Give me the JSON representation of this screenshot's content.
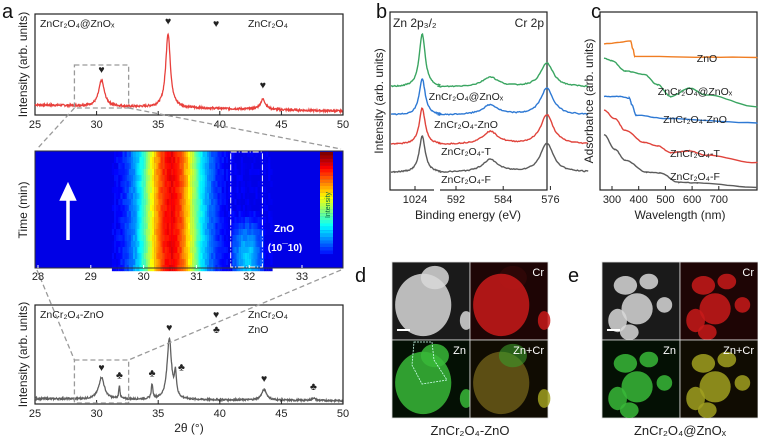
{
  "panel_labels": {
    "a": "a",
    "b": "b",
    "c": "c",
    "d": "d",
    "e": "e"
  },
  "chart_data": [
    {
      "id": "a_top",
      "type": "line",
      "title": "ZnCr₂O₄@ZnOₓ",
      "xlabel": "",
      "ylabel": "Intensity (arb. units)",
      "xlim": [
        25,
        50
      ],
      "xticks": [
        25,
        30,
        35,
        40,
        45,
        50
      ],
      "legend": [
        {
          "symbol": "♥",
          "label": "ZnCr₂O₄"
        }
      ],
      "color": "#e8403c",
      "baseline": [
        0.13,
        0.05
      ],
      "peaks": [
        {
          "x": 30.4,
          "h": 0.33,
          "w": 0.55,
          "marker": "♥"
        },
        {
          "x": 35.8,
          "h": 0.95,
          "w": 0.45,
          "marker": "♥"
        },
        {
          "x": 43.5,
          "h": 0.13,
          "w": 0.5,
          "marker": "♥"
        }
      ]
    },
    {
      "id": "a_mid",
      "type": "heatmap",
      "ylabel": "Time (min)",
      "xlim": [
        28,
        33.8
      ],
      "xticks": [
        28,
        29,
        30,
        31,
        32,
        33
      ],
      "colorbar_label": "Intensity",
      "annotation": "ZnO",
      "annotation2": "(10¯10)",
      "main_peak": {
        "x": 30.5,
        "w": 0.55
      },
      "zno_region": [
        31.65,
        32.25
      ]
    },
    {
      "id": "a_bottom",
      "type": "line",
      "title": "ZnCr₂O₄-ZnO",
      "xlabel": "2θ (°)",
      "ylabel": "Intensity (arb. units)",
      "xlim": [
        25,
        50
      ],
      "xticks": [
        25,
        30,
        35,
        40,
        45,
        50
      ],
      "legend": [
        {
          "symbol": "♥",
          "label": "ZnCr₂O₄"
        },
        {
          "symbol": "♣",
          "label": "ZnO"
        }
      ],
      "color": "#606060",
      "baseline": [
        0.05,
        0.02
      ],
      "peaks": [
        {
          "x": 30.4,
          "h": 0.33,
          "w": 0.55,
          "marker": "♥"
        },
        {
          "x": 31.85,
          "h": 0.2,
          "w": 0.12,
          "marker": "♣"
        },
        {
          "x": 34.5,
          "h": 0.22,
          "w": 0.15,
          "marker": "♣"
        },
        {
          "x": 35.9,
          "h": 0.92,
          "w": 0.42,
          "marker": "♥"
        },
        {
          "x": 36.4,
          "h": 0.35,
          "w": 0.2,
          "marker": "♣"
        },
        {
          "x": 43.6,
          "h": 0.16,
          "w": 0.5,
          "marker": "♥"
        },
        {
          "x": 47.6,
          "h": 0.04,
          "w": 0.3,
          "marker": "♣"
        }
      ]
    },
    {
      "id": "b",
      "type": "line",
      "xlabel": "Binding energy (eV)",
      "ylabel": "Intensity (arb. units)",
      "header_left": "Zn 2p₃/₂",
      "header_right": "Cr 2p",
      "xticks": [
        1024,
        592,
        584,
        576
      ],
      "series": [
        {
          "name": "ZnCr₂O₄@ZnOₓ",
          "color": "#3aa561",
          "offset": 3.5,
          "zn": 1.9,
          "cr1": 0.35,
          "cr2": 0.85
        },
        {
          "name": "ZnCr₂O₄-ZnO",
          "color": "#2e79d4",
          "offset": 2.5,
          "zn": 1.3,
          "cr1": 0.35,
          "cr2": 0.95
        },
        {
          "name": "ZnCr₂O₄-T",
          "color": "#e0443c",
          "offset": 1.45,
          "zn": 1.3,
          "cr1": 0.45,
          "cr2": 1.05
        },
        {
          "name": "ZnCr₂O₄-F",
          "color": "#5c5c5c",
          "offset": 0.45,
          "zn": 1.3,
          "cr1": 0.45,
          "cr2": 1.05
        }
      ]
    },
    {
      "id": "c",
      "type": "line",
      "xlabel": "Wavelength (nm)",
      "ylabel": "Adsorbance (arb. units)",
      "xlim": [
        255,
        843
      ],
      "xticks": [
        300,
        400,
        500,
        600,
        700
      ],
      "series": [
        {
          "name": "ZnO",
          "color": "#f07d22",
          "x": [
            270,
            370,
            378,
            386,
            843
          ],
          "y": [
            8.6,
            8.75,
            8.3,
            7.85,
            7.8
          ]
        },
        {
          "name": "ZnCr₂O₄@ZnOₓ",
          "color": "#3aa561",
          "x": [
            270,
            300,
            350,
            420,
            470,
            520,
            590,
            650,
            843
          ],
          "y": [
            7.75,
            7.6,
            7.0,
            6.8,
            6.2,
            5.5,
            6.0,
            5.6,
            4.9
          ]
        },
        {
          "name": "ZnCr₂O₄-ZnO",
          "color": "#2e79d4",
          "x": [
            270,
            330,
            365,
            375,
            390,
            500,
            843
          ],
          "y": [
            5.5,
            5.5,
            5.4,
            5.0,
            4.4,
            4.2,
            3.95
          ]
        },
        {
          "name": "ZnCr₂O₄-T",
          "color": "#e0443c",
          "x": [
            270,
            310,
            350,
            420,
            470,
            520,
            590,
            650,
            843
          ],
          "y": [
            4.7,
            4.2,
            3.5,
            2.8,
            2.6,
            2.2,
            2.3,
            2.05,
            1.6
          ]
        },
        {
          "name": "ZnCr₂O₄-F",
          "color": "#5c5c5c",
          "x": [
            270,
            310,
            350,
            430,
            480,
            550,
            620,
            843
          ],
          "y": [
            3.25,
            2.4,
            1.75,
            1.05,
            1.0,
            0.45,
            0.42,
            0.15
          ]
        }
      ]
    }
  ],
  "panel_d": {
    "caption": "ZnCr₂O₄-ZnO",
    "tiles": [
      "",
      "Cr",
      "Zn",
      "Zn+Cr"
    ]
  },
  "panel_e": {
    "caption": "ZnCr₂O₄@ZnOₓ",
    "tiles": [
      "",
      "Cr",
      "Zn",
      "Zn+Cr"
    ]
  }
}
